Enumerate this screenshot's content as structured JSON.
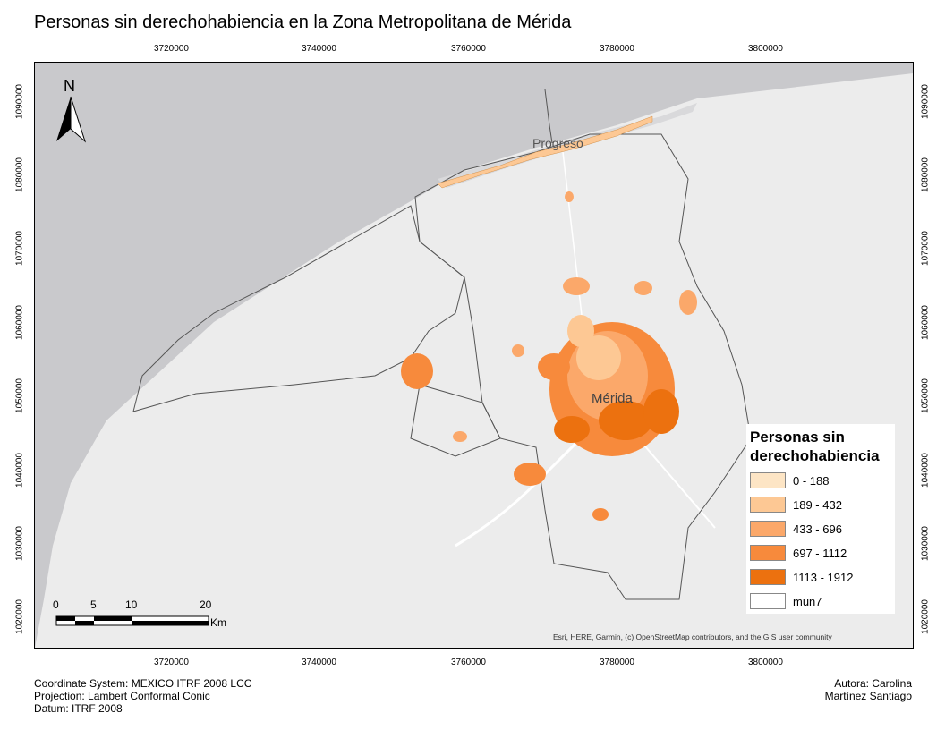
{
  "title": "Personas sin derechohabiencia en la Zona Metropolitana de Mérida",
  "x_ticks": [
    "3720000",
    "3740000",
    "3760000",
    "3780000",
    "3800000"
  ],
  "y_ticks": [
    "1090000",
    "1080000",
    "1070000",
    "1060000",
    "1050000",
    "1040000",
    "1030000",
    "1020000"
  ],
  "north_label": "N",
  "places": {
    "progreso": "Progreso",
    "merida": "Mérida"
  },
  "legend": {
    "title_line1": "Personas sin",
    "title_line2": "derechohabiencia",
    "items": [
      {
        "label": "0 - 188",
        "color": "#fde5c5"
      },
      {
        "label": "189 - 432",
        "color": "#fdc894"
      },
      {
        "label": "433 - 696",
        "color": "#fba86a"
      },
      {
        "label": "697 - 1112",
        "color": "#f78a3c"
      },
      {
        "label": "1113 - 1912",
        "color": "#ec710f"
      },
      {
        "label": "mun7",
        "color": "#ffffff"
      }
    ]
  },
  "scale": {
    "labels": [
      "0",
      "5",
      "10",
      "20"
    ],
    "unit": "Km"
  },
  "credits": "Esri, HERE, Garmin, (c) OpenStreetMap contributors, and the GIS user community",
  "info": {
    "coord_system": "Coordinate System: MEXICO ITRF 2008 LCC",
    "projection": "Projection: Lambert Conformal Conic",
    "datum": "Datum: ITRF 2008"
  },
  "author": {
    "line1": "Autora: Carolina",
    "line2": "Martínez Santiago"
  }
}
